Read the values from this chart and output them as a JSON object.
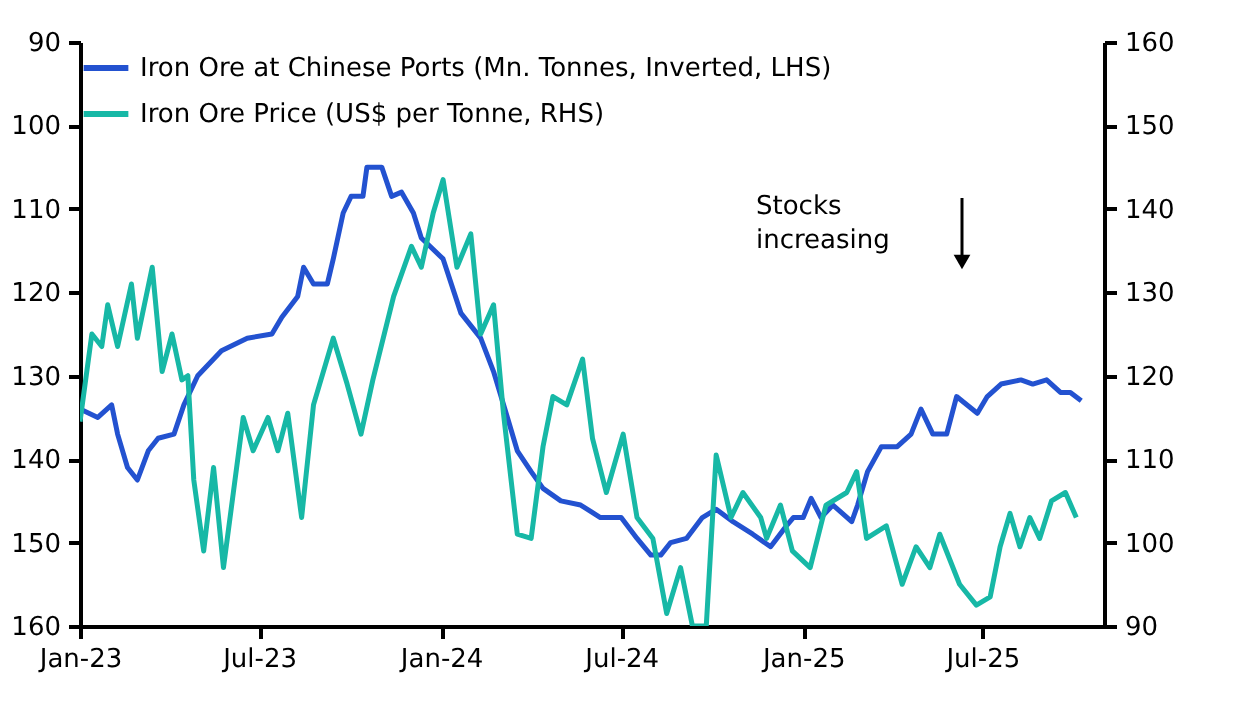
{
  "chart_data": {
    "type": "line",
    "xlim": [
      "2023-01-01",
      "2025-11-01"
    ],
    "xticks": [
      {
        "value": "2023-01-01",
        "label": "Jan-23"
      },
      {
        "value": "2023-07-01",
        "label": "Jul-23"
      },
      {
        "value": "2024-01-01",
        "label": "Jan-24"
      },
      {
        "value": "2024-07-01",
        "label": "Jul-24"
      },
      {
        "value": "2025-01-01",
        "label": "Jan-25"
      },
      {
        "value": "2025-07-01",
        "label": "Jul-25"
      }
    ],
    "ylim": [
      160,
      90
    ],
    "yticks": [
      90,
      100,
      110,
      120,
      130,
      140,
      150,
      160
    ],
    "y2lim": [
      90,
      160
    ],
    "y2ticks": [
      90,
      100,
      110,
      120,
      130,
      140,
      150,
      160
    ],
    "legend": "top left",
    "annotations": [
      "Stocks increasing"
    ],
    "series": [
      {
        "name": "Iron Ore at Chinese Ports (Mn. Tonnes, Inverted, LHS)",
        "color": "#2352d0",
        "x": [
          "2023-01-01",
          "2023-01-19",
          "2023-02-02",
          "2023-02-08",
          "2023-02-18",
          "2023-02-28",
          "2023-03-11",
          "2023-03-21",
          "2023-04-06",
          "2023-04-16",
          "2023-04-30",
          "2023-05-24",
          "2023-06-19",
          "2023-07-14",
          "2023-07-24",
          "2023-08-09",
          "2023-08-15",
          "2023-08-25",
          "2023-09-08",
          "2023-09-14",
          "2023-09-24",
          "2023-10-02",
          "2023-10-14",
          "2023-10-18",
          "2023-11-02",
          "2023-11-12",
          "2023-11-22",
          "2023-12-04",
          "2023-12-12",
          "2024-01-03",
          "2024-01-21",
          "2024-02-10",
          "2024-02-23",
          "2024-03-08",
          "2024-03-18",
          "2024-04-01",
          "2024-04-13",
          "2024-05-01",
          "2024-05-21",
          "2024-06-10",
          "2024-07-01",
          "2024-07-17",
          "2024-07-31",
          "2024-08-10",
          "2024-08-20",
          "2024-09-05",
          "2024-09-21",
          "2024-10-05",
          "2024-10-22",
          "2024-11-11",
          "2024-11-29",
          "2024-12-15",
          "2024-12-22",
          "2025-01-01",
          "2025-01-09",
          "2025-01-19",
          "2025-01-31",
          "2025-02-19",
          "2025-02-25",
          "2025-03-07",
          "2025-03-21",
          "2025-04-06",
          "2025-04-20",
          "2025-04-30",
          "2025-05-12",
          "2025-05-26",
          "2025-06-05",
          "2025-06-26",
          "2025-07-06",
          "2025-07-20",
          "2025-08-09",
          "2025-08-21",
          "2025-09-04",
          "2025-09-18",
          "2025-09-28",
          "2025-10-09"
        ],
        "values": [
          134,
          135,
          133.5,
          137,
          141,
          142.5,
          139,
          137.5,
          137,
          133.5,
          130,
          127,
          125.5,
          125,
          123,
          120.5,
          117,
          119,
          119,
          116,
          110.5,
          108.5,
          108.5,
          105,
          105,
          108.5,
          108,
          110.5,
          113.5,
          116,
          122.5,
          125.5,
          129.5,
          135,
          139,
          141.5,
          143.5,
          145,
          145.5,
          147,
          147,
          149.5,
          151.5,
          151.5,
          150,
          149.5,
          147,
          146,
          147.5,
          149,
          150.5,
          148,
          147,
          147,
          144.7,
          147,
          145.5,
          147.5,
          145.5,
          141.5,
          138.5,
          138.5,
          137,
          134,
          137,
          137,
          132.5,
          134.5,
          132.5,
          131,
          130.5,
          131,
          130.5,
          132,
          132,
          133
        ]
      },
      {
        "name": "Iron Ore Price (US$ per Tonne, RHS)",
        "color": "#17b8a6",
        "axis": "y2",
        "x": [
          "2023-01-01",
          "2023-01-13",
          "2023-01-23",
          "2023-01-29",
          "2023-02-08",
          "2023-02-22",
          "2023-02-28",
          "2023-03-15",
          "2023-03-25",
          "2023-04-04",
          "2023-04-14",
          "2023-04-20",
          "2023-04-26",
          "2023-05-06",
          "2023-05-16",
          "2023-05-26",
          "2023-06-05",
          "2023-06-15",
          "2023-06-25",
          "2023-07-10",
          "2023-07-20",
          "2023-07-30",
          "2023-08-13",
          "2023-08-25",
          "2023-09-14",
          "2023-09-28",
          "2023-10-12",
          "2023-10-24",
          "2023-11-14",
          "2023-12-02",
          "2023-12-12",
          "2023-12-24",
          "2024-01-03",
          "2024-01-17",
          "2024-01-31",
          "2024-02-10",
          "2024-02-23",
          "2024-03-04",
          "2024-03-18",
          "2024-04-01",
          "2024-04-13",
          "2024-04-23",
          "2024-05-07",
          "2024-05-23",
          "2024-06-02",
          "2024-06-16",
          "2024-07-03",
          "2024-07-17",
          "2024-08-02",
          "2024-08-16",
          "2024-08-30",
          "2024-09-11",
          "2024-09-25",
          "2024-10-05",
          "2024-10-20",
          "2024-11-01",
          "2024-11-19",
          "2024-11-25",
          "2024-12-09",
          "2024-12-21",
          "2025-01-08",
          "2025-01-24",
          "2025-02-14",
          "2025-02-24",
          "2025-03-06",
          "2025-03-26",
          "2025-04-11",
          "2025-04-25",
          "2025-05-09",
          "2025-05-19",
          "2025-06-08",
          "2025-06-25",
          "2025-07-09",
          "2025-07-19",
          "2025-07-29",
          "2025-08-08",
          "2025-08-18",
          "2025-08-28",
          "2025-09-09",
          "2025-09-23",
          "2025-10-04"
        ],
        "values": [
          114.5,
          125,
          123.5,
          128.5,
          123.5,
          131,
          124.5,
          133,
          120.5,
          125,
          119.5,
          120,
          107.5,
          99,
          109,
          97,
          106,
          115,
          111,
          115,
          111,
          115.5,
          103,
          116.5,
          124.5,
          119,
          113,
          119.5,
          129.5,
          135.5,
          133,
          139.5,
          143.5,
          133,
          137,
          125,
          128.5,
          115.5,
          101,
          100.5,
          111.5,
          117.5,
          116.5,
          122,
          112.5,
          106,
          113,
          103,
          100.5,
          91.5,
          97,
          90,
          90,
          110.5,
          103,
          106,
          103,
          100.5,
          104.5,
          99,
          97,
          104.5,
          106,
          108.5,
          100.5,
          102,
          95,
          99.5,
          97,
          101,
          95,
          92.5,
          93.5,
          99.5,
          103.5,
          99.5,
          103,
          100.5,
          105,
          106,
          103
        ]
      }
    ]
  }
}
